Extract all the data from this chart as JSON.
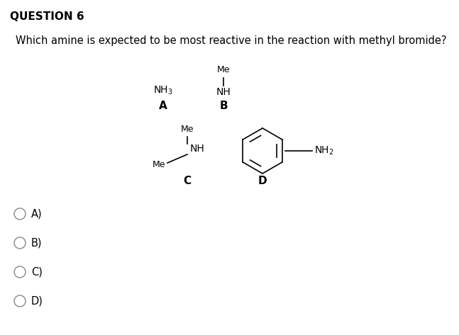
{
  "title": "QUESTION 6",
  "question": "Which amine is expected to be most reactive in the reaction with methyl bromide?",
  "background_color": "#ffffff",
  "text_color": "#000000",
  "options": [
    "A)",
    "B)",
    "C)",
    "D)"
  ],
  "title_fontsize": 11,
  "question_fontsize": 10.5,
  "option_fontsize": 10.5,
  "mol_fontsize": 10,
  "mol_label_fontsize": 11,
  "mol_small_fontsize": 9
}
